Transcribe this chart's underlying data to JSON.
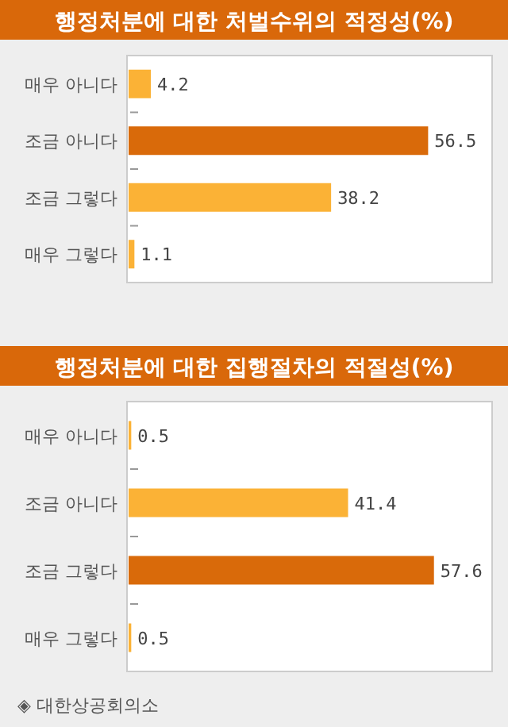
{
  "chart_data": [
    {
      "type": "bar",
      "orientation": "horizontal",
      "title": "행정처분에 대한 처벌수위의 적정성(%)",
      "categories": [
        "매우 아니다",
        "조금 아니다",
        "조금 그렇다",
        "매우 그렇다"
      ],
      "values": [
        4.2,
        56.5,
        38.2,
        1.1
      ],
      "colors": [
        "#fbb236",
        "#d96a0a",
        "#fbb236",
        "#fbb236"
      ],
      "data_labels": true
    },
    {
      "type": "bar",
      "orientation": "horizontal",
      "title": "행정처분에 대한 집행절차의 적절성(%)",
      "categories": [
        "매우 아니다",
        "조금 아니다",
        "조금 그렇다",
        "매우 그렇다"
      ],
      "values": [
        0.5,
        41.4,
        57.6,
        0.5
      ],
      "colors": [
        "#fbb236",
        "#fbb236",
        "#d96a0a",
        "#fbb236"
      ],
      "data_labels": true,
      "annotations": [
        "◈ 대한상공회의소"
      ]
    }
  ]
}
